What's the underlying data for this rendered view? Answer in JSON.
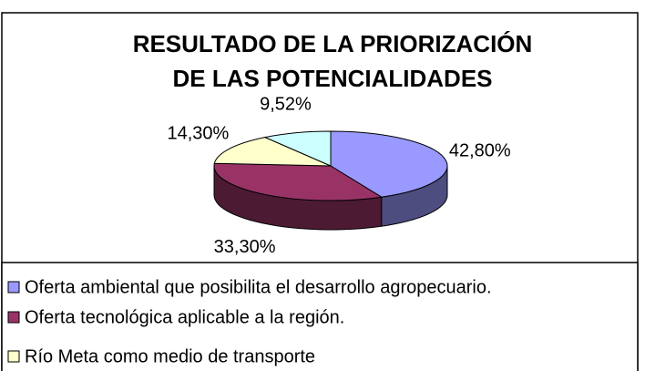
{
  "chart_data": {
    "type": "pie",
    "title": [
      "RESULTADO DE LA PRIORIZACIÓN",
      "DE LAS POTENCIALIDADES"
    ],
    "categories": [
      "Oferta ambiental que posibilita el desarrollo agropecuario.",
      "Oferta tecnológica aplicable a la región.",
      "Río Meta como medio de transporte",
      null
    ],
    "values": [
      42.8,
      33.3,
      14.3,
      9.52
    ],
    "value_labels": [
      "42,80%",
      "33,30%",
      "14,30%",
      "9,52%"
    ],
    "colors": [
      "#9999ff",
      "#993366",
      "#ffffcc",
      "#ccffff"
    ],
    "legend": "bottom"
  }
}
